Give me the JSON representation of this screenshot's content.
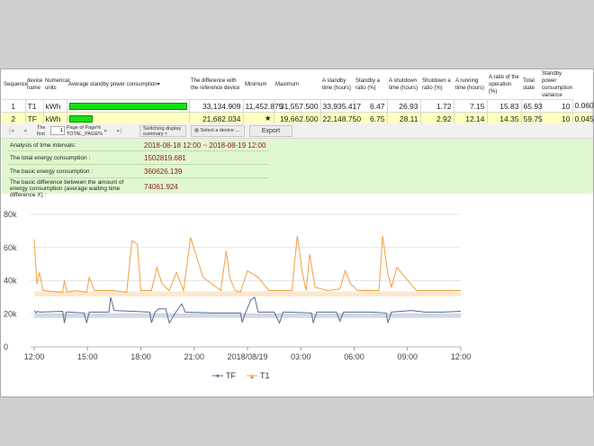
{
  "table": {
    "headers": {
      "seq": "Sequence",
      "device": "device name",
      "units": "Numerical units",
      "avg": "Average standby power consumption",
      "diff": "The difference with the reference device",
      "min": "Minimum",
      "max": "Maximum",
      "standby_time": "A standby time (hours)",
      "standby_ratio": "Standby a ratio (%)",
      "shutdown_time": "A shutdown time (hours)",
      "shutdown_ratio": "Shutdown a ratio (%)",
      "running_time": "A running time (hours)",
      "op_ratio": "A ratio of the operation (%)",
      "total_state": "Total state",
      "variance": "Standby power consumption variance"
    },
    "sort_indicator": "▾",
    "rows": [
      {
        "seq": "1",
        "device": "T1",
        "unit": "kWh",
        "bar_fraction": 1.0,
        "avg": "33,134.909",
        "diff": "11,452.875",
        "min": "31,557.500",
        "max": "33,935.417",
        "standby_time": "6.47",
        "standby_ratio": "26.93",
        "shutdown_time": "1.72",
        "shutdown_ratio": "7.15",
        "running_time": "15.83",
        "op_ratio": "65.93",
        "total_state": "10",
        "variance": "0.060"
      },
      {
        "seq": "2",
        "device": "TF",
        "unit": "kWh",
        "bar_fraction": 0.2,
        "avg": "21,682.034",
        "diff": "★",
        "min": "19,662.500",
        "max": "22,148.750",
        "standby_time": "6.75",
        "standby_ratio": "28.11",
        "shutdown_time": "2.92",
        "shutdown_ratio": "12.14",
        "running_time": "14.35",
        "op_ratio": "59.75",
        "total_state": "10",
        "variance": "0.045"
      }
    ]
  },
  "pager": {
    "first_icon": "|◂",
    "prev_icon": "◂",
    "the_label": "The",
    "first_label": "first",
    "page_value": "1",
    "page_of": "Page of Page%",
    "total_page": "TOTAL_PAGE%",
    "next_icon": "▸",
    "last_icon": "▸|",
    "switch_label": "Switching display",
    "switch_value": "summary",
    "switch_icon": "▾",
    "select_device": "Select a device ...",
    "export_label": "Export"
  },
  "summary": {
    "rows": [
      {
        "label": "Analysis of time intervals:",
        "value": "2018-08-18 12:00 ~ 2018-08-19 12:00"
      },
      {
        "label": "The total energy consumption :",
        "value": "1502819.681"
      },
      {
        "label": "The basic energy consumption :",
        "value": "360626.139"
      },
      {
        "label": "The basic difference between the amount of energy consumption (average waiting time difference X) :",
        "value": "74061.924"
      }
    ]
  },
  "chart_data": {
    "type": "line",
    "title": "",
    "xlabel": "",
    "ylabel": "",
    "x_ticks": [
      "12:00",
      "15:00",
      "18:00",
      "21:00",
      "2018/08/19",
      "03:00",
      "06:00",
      "09:00",
      "12:00"
    ],
    "x_range_hours": [
      0,
      24
    ],
    "ylim": [
      0,
      80000
    ],
    "y_ticks": [
      0,
      20000,
      40000,
      60000,
      80000
    ],
    "y_tick_labels": [
      "0",
      "20k",
      "40k",
      "60k",
      "80k"
    ],
    "series": [
      {
        "name": "TF",
        "color": "#4f6d99",
        "band": [
          17500,
          20000
        ],
        "x": [
          0,
          0.1,
          0.2,
          0.3,
          1.6,
          1.7,
          1.8,
          2.0,
          2.8,
          2.95,
          3.1,
          3.8,
          4.2,
          4.3,
          4.5,
          5.5,
          6.5,
          6.6,
          6.8,
          7.0,
          7.4,
          7.6,
          8.0,
          8.3,
          8.5,
          10.0,
          11.6,
          11.7,
          11.9,
          12.2,
          12.4,
          12.6,
          13.5,
          13.8,
          14.0,
          14.3,
          15.6,
          15.7,
          15.9,
          17.0,
          17.2,
          17.4,
          17.6,
          19.0,
          19.8,
          19.9,
          20.1,
          21.2,
          22.0,
          23.0,
          24.0
        ],
        "y": [
          22000,
          20500,
          21500,
          21000,
          21500,
          14500,
          21000,
          21000,
          20500,
          14500,
          21000,
          21000,
          21000,
          30000,
          22000,
          21500,
          21000,
          14500,
          21000,
          23000,
          23000,
          14500,
          21500,
          26000,
          21000,
          20500,
          20500,
          15000,
          21000,
          28500,
          30000,
          21000,
          21000,
          14500,
          21000,
          21000,
          20500,
          14500,
          21000,
          21000,
          15500,
          21000,
          21000,
          21000,
          20500,
          14500,
          21000,
          22000,
          21000,
          21000,
          21500
        ]
      },
      {
        "name": "T1",
        "color": "#f0a040",
        "band": [
          30500,
          33500
        ],
        "x": [
          0,
          0.15,
          0.3,
          0.5,
          1.6,
          1.7,
          1.85,
          2.3,
          2.95,
          3.1,
          3.4,
          4.5,
          5.2,
          5.5,
          5.8,
          6.0,
          6.6,
          6.9,
          7.2,
          7.6,
          8.0,
          8.4,
          8.8,
          9.5,
          10.5,
          10.8,
          11.0,
          11.3,
          11.6,
          12.0,
          12.6,
          13.2,
          13.8,
          14.5,
          14.8,
          15.1,
          15.3,
          15.5,
          15.8,
          16.5,
          17.2,
          17.5,
          17.8,
          18.2,
          19.4,
          19.6,
          19.9,
          20.1,
          20.4,
          21.5,
          22.5,
          23.5,
          24.0
        ],
        "y": [
          65000,
          38000,
          45000,
          34000,
          33000,
          40000,
          33000,
          34000,
          33000,
          42000,
          34000,
          34000,
          33000,
          64000,
          62000,
          34000,
          34000,
          48000,
          38000,
          34000,
          45000,
          34000,
          66000,
          42000,
          34000,
          58000,
          42000,
          34000,
          33000,
          46000,
          42000,
          34000,
          34000,
          34000,
          67000,
          44000,
          34000,
          56000,
          36000,
          34000,
          35000,
          46000,
          38000,
          34000,
          34000,
          67000,
          44000,
          36000,
          48000,
          34000,
          34000,
          34000,
          34000
        ]
      }
    ],
    "legend_position": "bottom"
  }
}
